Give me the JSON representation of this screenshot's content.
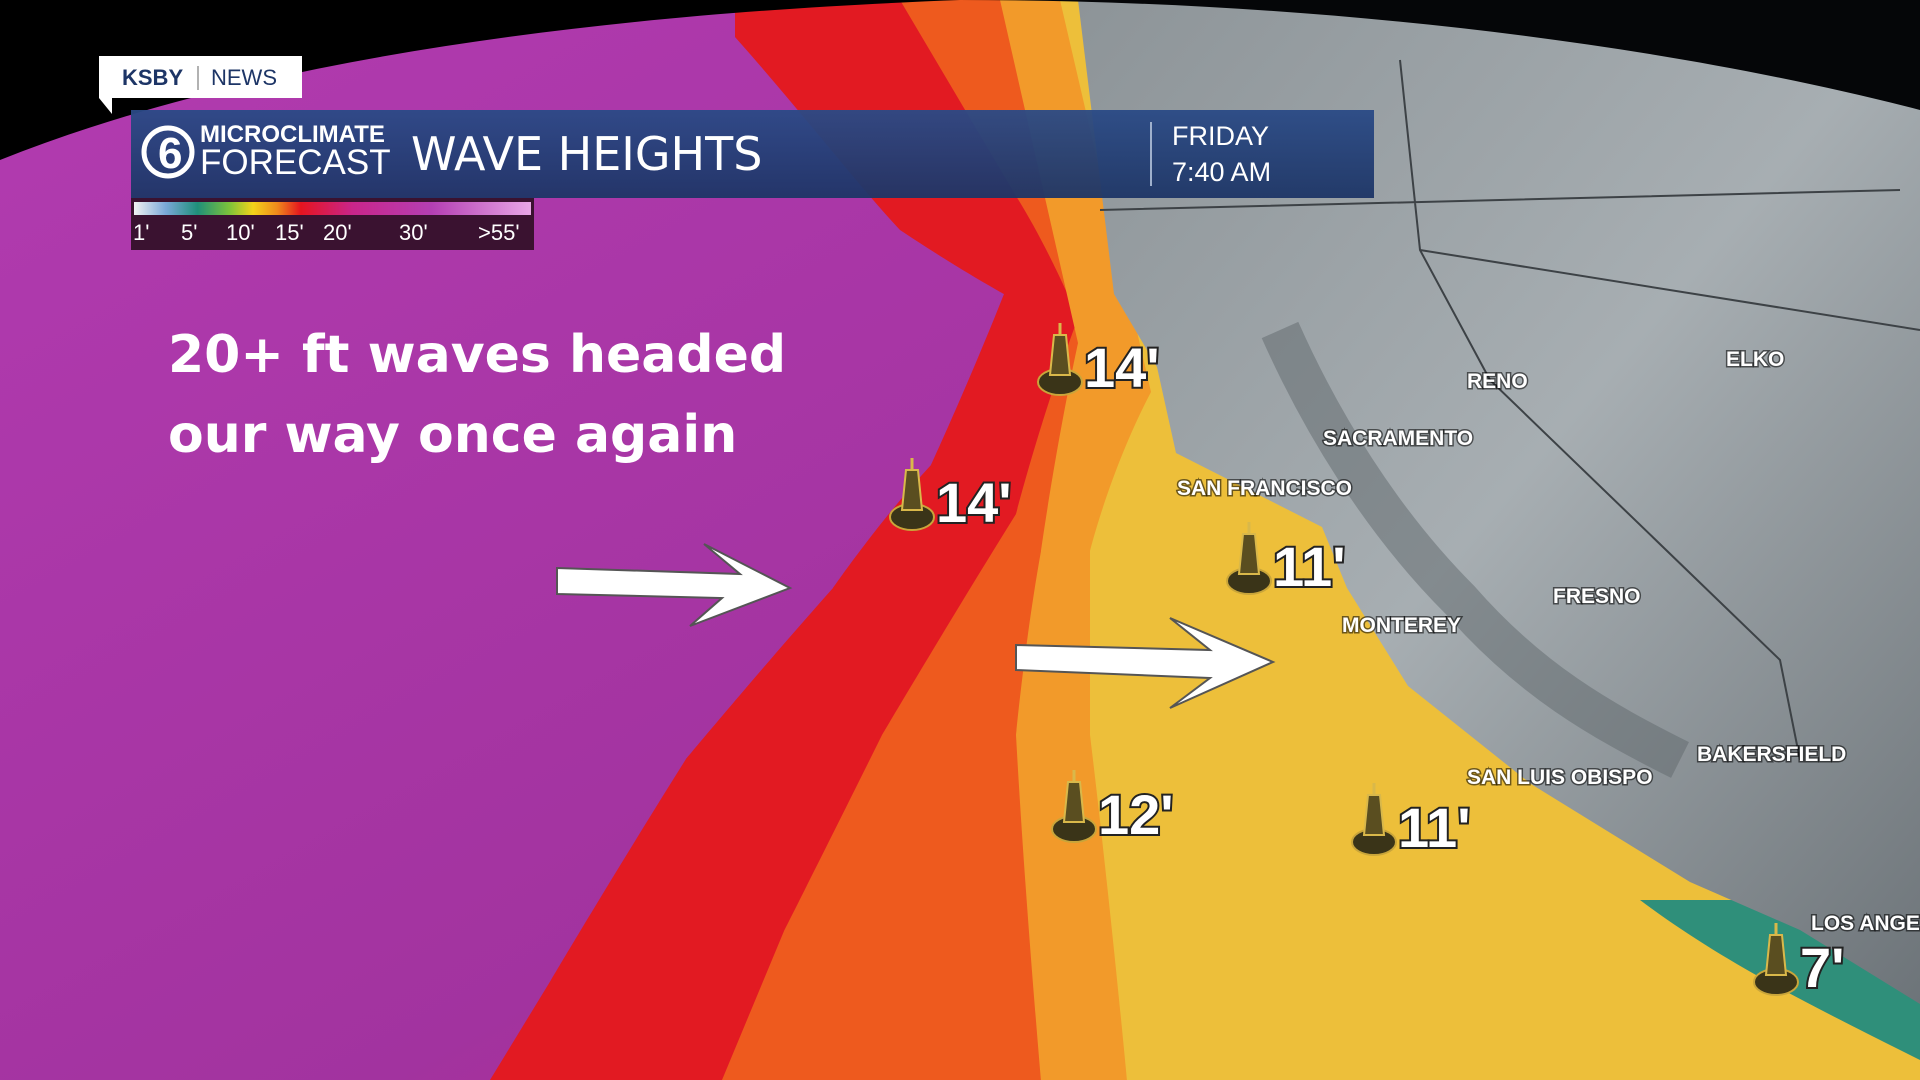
{
  "header": {
    "brand": "KSBY",
    "brand_sub": "NEWS",
    "logo_top": "MICROCLIMATE",
    "logo_bottom": "FORECAST",
    "title": "WAVE HEIGHTS",
    "day": "FRIDAY",
    "time": "7:40 AM"
  },
  "legend": {
    "labels": [
      "1'",
      "5'",
      "10'",
      "15'",
      "20'",
      "30'",
      ">55'"
    ]
  },
  "headline": [
    "20+ ft waves headed",
    "our way once again"
  ],
  "cities": [
    {
      "name": "RENO"
    },
    {
      "name": "ELKO"
    },
    {
      "name": "SACRAMENTO"
    },
    {
      "name": "SAN FRANCISCO"
    },
    {
      "name": "FRESNO"
    },
    {
      "name": "MONTEREY"
    },
    {
      "name": "SAN LUIS OBISPO"
    },
    {
      "name": "BAKERSFIELD"
    },
    {
      "name": "LOS ANGE"
    }
  ],
  "buoys": [
    {
      "label": "14'"
    },
    {
      "label": "14'"
    },
    {
      "label": "11'"
    },
    {
      "label": "12'"
    },
    {
      "label": "11'"
    },
    {
      "label": "7'"
    }
  ]
}
